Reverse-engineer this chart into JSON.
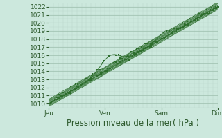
{
  "xlabel": "Pression niveau de la mer( hPa )",
  "ylim": [
    1009.5,
    1022.5
  ],
  "yticks": [
    1010,
    1011,
    1012,
    1013,
    1014,
    1015,
    1016,
    1017,
    1018,
    1019,
    1020,
    1021,
    1022
  ],
  "xtick_labels": [
    "Jeu",
    "Ven",
    "Sam",
    "Dim"
  ],
  "xtick_positions": [
    0,
    72,
    144,
    216
  ],
  "total_points": 217,
  "bg_color": "#cce8dd",
  "grid_major_color": "#99bbaa",
  "grid_minor_color": "#b8d4c8",
  "line_color": "#2d6e2d",
  "tick_label_color": "#2d5a2d",
  "xlabel_fontsize": 8.5,
  "tick_fontsize": 6.5
}
